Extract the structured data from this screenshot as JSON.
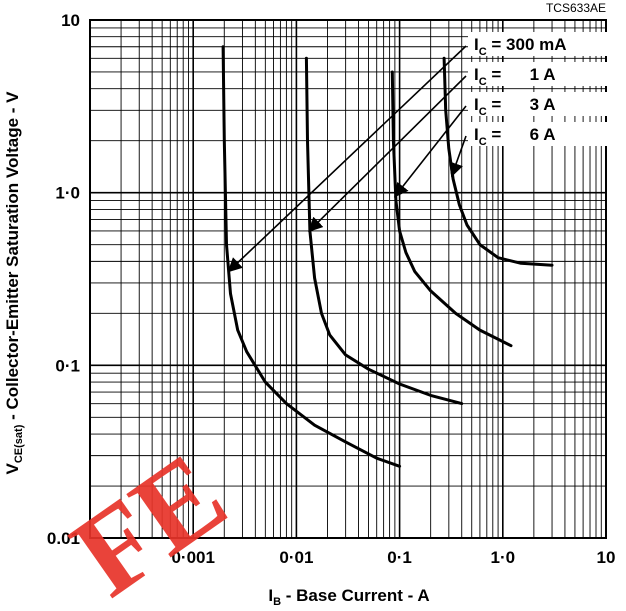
{
  "chart_data": {
    "type": "line",
    "figure_id": "TCS633AE",
    "x_axis": {
      "label_main": "I",
      "label_sub": "B",
      "label_rest": " - Base Current - A",
      "scale": "log",
      "range": [
        0.0001,
        10
      ],
      "tick_values": [
        0.001,
        0.01,
        0.1,
        1.0,
        10
      ],
      "tick_labels": [
        "0·001",
        "0·01",
        "0·1",
        "1·0",
        "10"
      ]
    },
    "y_axis": {
      "label_main": "V",
      "label_sub": "CE(sat)",
      "label_rest": " - Collector-Emitter Saturation Voltage - V",
      "scale": "log",
      "range": [
        0.01,
        10
      ],
      "tick_values": [
        0.01,
        0.1,
        1.0,
        10
      ],
      "tick_labels": [
        "0.01",
        "0·1",
        "1·0",
        "10"
      ]
    },
    "grid": true,
    "legend_placement": "top-right",
    "series": [
      {
        "name": "300 mA",
        "label_prefix": "I",
        "label_sub": "C",
        "label_value": "= 300 mA",
        "x": [
          0.00195,
          0.002,
          0.0021,
          0.0023,
          0.0027,
          0.0033,
          0.005,
          0.008,
          0.015,
          0.03,
          0.06,
          0.1
        ],
        "y": [
          7.0,
          2.0,
          0.5,
          0.26,
          0.16,
          0.12,
          0.08,
          0.06,
          0.045,
          0.036,
          0.029,
          0.026
        ]
      },
      {
        "name": "1 A",
        "label_prefix": "I",
        "label_sub": "C",
        "label_value": "=      1 A",
        "x": [
          0.0125,
          0.0128,
          0.0135,
          0.015,
          0.0175,
          0.021,
          0.03,
          0.05,
          0.1,
          0.2,
          0.4
        ],
        "y": [
          6.0,
          2.0,
          0.6,
          0.32,
          0.2,
          0.15,
          0.115,
          0.095,
          0.078,
          0.067,
          0.06
        ]
      },
      {
        "name": "3 A",
        "label_prefix": "I",
        "label_sub": "C",
        "label_value": "=      3 A",
        "x": [
          0.085,
          0.087,
          0.092,
          0.1,
          0.115,
          0.14,
          0.2,
          0.35,
          0.6,
          1.2
        ],
        "y": [
          5.0,
          2.0,
          0.9,
          0.6,
          0.45,
          0.35,
          0.27,
          0.2,
          0.16,
          0.13
        ]
      },
      {
        "name": "6 A",
        "label_prefix": "I",
        "label_sub": "C",
        "label_value": "=      6 A",
        "x": [
          0.27,
          0.28,
          0.3,
          0.33,
          0.38,
          0.45,
          0.6,
          0.9,
          1.5,
          3.0
        ],
        "y": [
          6.0,
          3.0,
          1.8,
          1.2,
          0.85,
          0.65,
          0.5,
          0.42,
          0.39,
          0.38
        ]
      }
    ]
  },
  "watermark": "FE"
}
